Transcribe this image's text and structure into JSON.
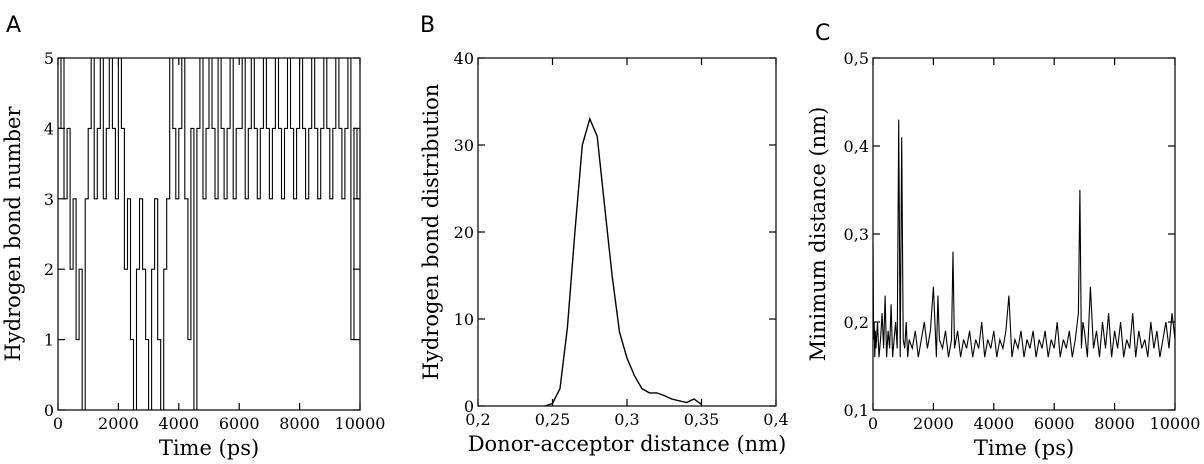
{
  "chart_data": [
    {
      "panel": "A",
      "type": "line",
      "title": "",
      "xlabel": "Time (ps)",
      "ylabel": "Hydrogen bond number",
      "xlim": [
        0,
        10000
      ],
      "ylim": [
        0,
        5
      ],
      "xticks": [
        0,
        2000,
        4000,
        6000,
        8000,
        10000
      ],
      "xtick_labels": [
        "0",
        "2000",
        "4000",
        "6000",
        "8000",
        "10000"
      ],
      "yticks": [
        0,
        1,
        2,
        3,
        4,
        5
      ],
      "ytick_labels": [
        "0",
        "1",
        "2",
        "3",
        "4",
        "5"
      ],
      "grid": false,
      "series": [
        {
          "x": [
            0,
            100,
            200,
            300,
            400,
            500,
            600,
            700,
            800,
            900,
            1000,
            1100,
            1200,
            1300,
            1400,
            1500,
            1600,
            1700,
            1800,
            1900,
            2000,
            2100,
            2200,
            2300,
            2400,
            2500,
            2600,
            2700,
            2800,
            2900,
            3000,
            3100,
            3200,
            3300,
            3400,
            3500,
            3600,
            3700,
            3800,
            3900,
            4000,
            4100,
            4200,
            4300,
            4400,
            4500,
            4600,
            4700,
            4800,
            4900,
            5000,
            5100,
            5200,
            5300,
            5400,
            5500,
            5600,
            5700,
            5800,
            5900,
            6000,
            6100,
            6200,
            6300,
            6400,
            6500,
            6600,
            6700,
            6800,
            6900,
            7000,
            7100,
            7200,
            7300,
            7400,
            7500,
            7600,
            7700,
            7800,
            7900,
            8000,
            8100,
            8200,
            8300,
            8400,
            8500,
            8600,
            8700,
            8800,
            8900,
            9000,
            9100,
            9200,
            9300,
            9400,
            9500,
            9600,
            9700,
            9800,
            9900,
            10000
          ],
          "y": [
            4,
            5,
            3,
            4,
            2,
            3,
            1,
            2,
            0,
            3,
            4,
            5,
            3,
            4,
            5,
            3,
            4,
            5,
            4,
            3,
            5,
            4,
            2,
            3,
            1,
            0,
            2,
            3,
            2,
            1,
            0,
            2,
            3,
            1,
            0,
            2,
            3,
            5,
            4,
            3,
            4,
            5,
            3,
            1,
            4,
            0,
            4,
            5,
            3,
            4,
            5,
            4,
            3,
            5,
            4,
            3,
            4,
            5,
            3,
            4,
            4,
            5,
            3,
            4,
            5,
            4,
            3,
            4,
            5,
            4,
            3,
            4,
            5,
            4,
            3,
            4,
            5,
            4,
            3,
            4,
            5,
            4,
            3,
            4,
            5,
            4,
            3,
            4,
            5,
            4,
            3,
            4,
            5,
            4,
            3,
            4,
            5,
            1,
            4,
            3,
            4
          ]
        }
      ]
    },
    {
      "panel": "B",
      "type": "line",
      "title": "",
      "xlabel": "Donor-acceptor distance (nm)",
      "ylabel": "Hydrogen bond distribution",
      "xlim": [
        0.2,
        0.4
      ],
      "ylim": [
        0,
        40
      ],
      "xticks": [
        0.2,
        0.25,
        0.3,
        0.35,
        0.4
      ],
      "xtick_labels": [
        "0,2",
        "0,25",
        "0,3",
        "0,35",
        "0,4"
      ],
      "yticks": [
        0,
        10,
        20,
        30,
        40
      ],
      "ytick_labels": [
        "0",
        "10",
        "20",
        "30",
        "40"
      ],
      "grid": false,
      "series": [
        {
          "x": [
            0.245,
            0.25,
            0.255,
            0.26,
            0.265,
            0.27,
            0.275,
            0.28,
            0.285,
            0.29,
            0.295,
            0.3,
            0.305,
            0.31,
            0.315,
            0.32,
            0.325,
            0.33,
            0.335,
            0.34,
            0.345,
            0.35
          ],
          "y": [
            0,
            0.3,
            2,
            9,
            20,
            30,
            33,
            31,
            23,
            15,
            8.5,
            5.5,
            3.5,
            2,
            1.5,
            1.5,
            1.2,
            0.8,
            0.6,
            0.4,
            0.8,
            0.2
          ]
        }
      ]
    },
    {
      "panel": "C",
      "type": "line",
      "title": "",
      "xlabel": "Time (ps)",
      "ylabel": "Minimum distance (nm)",
      "xlim": [
        0,
        10000
      ],
      "ylim": [
        0.1,
        0.5
      ],
      "xticks": [
        0,
        2000,
        4000,
        6000,
        8000,
        10000
      ],
      "xtick_labels": [
        "0",
        "2000",
        "4000",
        "6000",
        "8000",
        "10000"
      ],
      "yticks": [
        0.1,
        0.2,
        0.3,
        0.4,
        0.5
      ],
      "ytick_labels": [
        "0,1",
        "0,2",
        "0,3",
        "0,4",
        "0,5"
      ],
      "grid": false,
      "series": [
        {
          "x": [
            0,
            20,
            40,
            60,
            80,
            100,
            150,
            200,
            250,
            300,
            350,
            400,
            450,
            500,
            550,
            600,
            650,
            700,
            750,
            800,
            850,
            900,
            950,
            1000,
            1050,
            1100,
            1150,
            1200,
            1300,
            1400,
            1500,
            1600,
            1700,
            1800,
            1900,
            2000,
            2100,
            2150,
            2200,
            2300,
            2400,
            2500,
            2600,
            2650,
            2700,
            2800,
            2900,
            3000,
            3100,
            3200,
            3300,
            3400,
            3500,
            3600,
            3700,
            3800,
            3900,
            4000,
            4100,
            4200,
            4300,
            4400,
            4500,
            4600,
            4700,
            4800,
            4900,
            5000,
            5100,
            5200,
            5300,
            5400,
            5500,
            5600,
            5700,
            5800,
            5900,
            6000,
            6100,
            6200,
            6300,
            6400,
            6500,
            6600,
            6700,
            6800,
            6850,
            6900,
            6950,
            7000,
            7100,
            7200,
            7300,
            7400,
            7500,
            7600,
            7700,
            7800,
            7900,
            8000,
            8100,
            8200,
            8300,
            8400,
            8500,
            8600,
            8700,
            8800,
            8900,
            9000,
            9100,
            9200,
            9300,
            9400,
            9500,
            9600,
            9700,
            9800,
            9900,
            10000
          ],
          "y": [
            0.29,
            0.18,
            0.2,
            0.16,
            0.19,
            0.17,
            0.2,
            0.16,
            0.18,
            0.21,
            0.17,
            0.23,
            0.16,
            0.19,
            0.17,
            0.22,
            0.16,
            0.18,
            0.2,
            0.17,
            0.43,
            0.16,
            0.41,
            0.18,
            0.17,
            0.2,
            0.16,
            0.18,
            0.17,
            0.19,
            0.16,
            0.18,
            0.2,
            0.17,
            0.19,
            0.24,
            0.16,
            0.23,
            0.18,
            0.17,
            0.19,
            0.16,
            0.18,
            0.28,
            0.17,
            0.19,
            0.16,
            0.18,
            0.17,
            0.19,
            0.16,
            0.18,
            0.17,
            0.2,
            0.16,
            0.18,
            0.17,
            0.19,
            0.16,
            0.18,
            0.17,
            0.19,
            0.23,
            0.16,
            0.18,
            0.17,
            0.19,
            0.16,
            0.18,
            0.17,
            0.19,
            0.16,
            0.18,
            0.17,
            0.19,
            0.16,
            0.18,
            0.17,
            0.2,
            0.16,
            0.18,
            0.17,
            0.19,
            0.16,
            0.18,
            0.21,
            0.35,
            0.17,
            0.2,
            0.19,
            0.16,
            0.24,
            0.17,
            0.19,
            0.16,
            0.2,
            0.17,
            0.21,
            0.16,
            0.19,
            0.17,
            0.2,
            0.16,
            0.18,
            0.17,
            0.21,
            0.16,
            0.19,
            0.17,
            0.18,
            0.16,
            0.2,
            0.17,
            0.19,
            0.16,
            0.18,
            0.2,
            0.17,
            0.21,
            0.18
          ]
        }
      ]
    }
  ],
  "panel_letters": {
    "a": "A",
    "b": "B",
    "c": "C"
  }
}
